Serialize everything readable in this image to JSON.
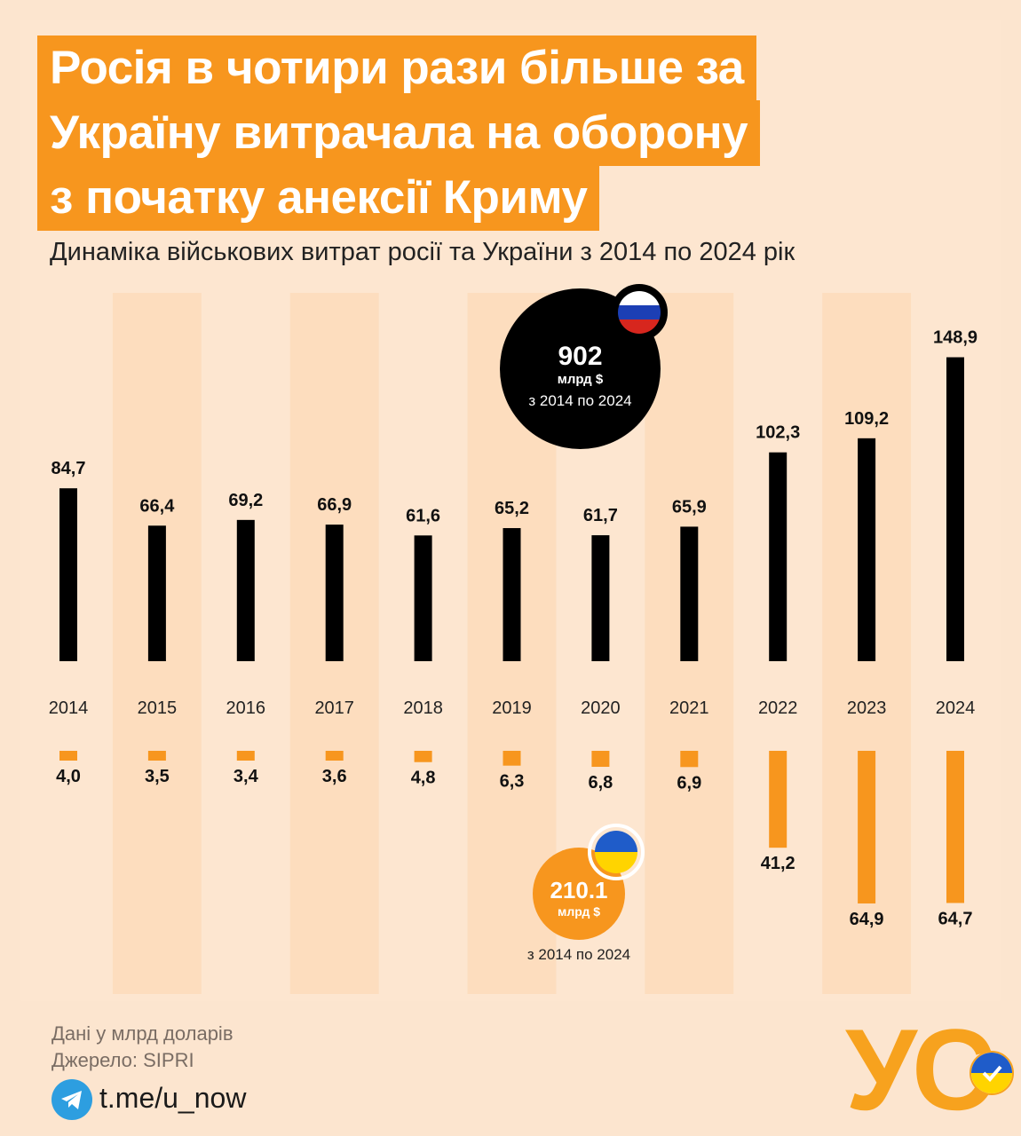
{
  "title_lines": [
    "Росія в чотири рази більше за",
    "Україну витрачала на оборону",
    "з початку анексії Криму"
  ],
  "subtitle": "Динаміка військових витрат росії та України з 2014 по 2024 рік",
  "russia_total": {
    "value": "902",
    "unit": "млрд $",
    "period": "з 2014 по 2024"
  },
  "ukraine_total": {
    "value": "210.1",
    "unit": "млрд $",
    "period": "з 2014 по 2024"
  },
  "footer": {
    "units_note": "Дані у млрд доларів",
    "source": "Джерело: SIPRI",
    "link": "t.me/u_now",
    "logo": "УС"
  },
  "icons": {
    "telegram": "telegram-icon",
    "flag_russia": "russia-flag-icon",
    "flag_ukraine": "ukraine-flag-icon"
  },
  "colors": {
    "russia": "#000000",
    "ukraine": "#f7961e",
    "background": "#fce5cf",
    "title_bg": "#f7961e"
  },
  "chart_data": {
    "type": "bar",
    "categories": [
      "2014",
      "2015",
      "2016",
      "2017",
      "2018",
      "2019",
      "2020",
      "2021",
      "2022",
      "2023",
      "2024"
    ],
    "series": [
      {
        "values": [
          84.7,
          66.4,
          69.2,
          66.9,
          61.6,
          65.2,
          61.7,
          65.9,
          102.3,
          109.2,
          148.9
        ],
        "labels": [
          "84,7",
          "66,4",
          "69,2",
          "66,9",
          "61,6",
          "65,2",
          "61,7",
          "65,9",
          "102,3",
          "109,2",
          "148,9"
        ]
      },
      {
        "values": [
          4.0,
          3.5,
          3.4,
          3.6,
          4.8,
          6.3,
          6.8,
          6.9,
          41.2,
          64.9,
          64.7
        ],
        "labels": [
          "4,0",
          "3,5",
          "3,4",
          "3,6",
          "4,8",
          "6,3",
          "6,8",
          "6,9",
          "41,2",
          "64,9",
          "64,7"
        ]
      }
    ],
    "title": "Росія в чотири рази більше за Україну витрачала на оборону з початку анексії Криму",
    "subtitle": "Динаміка військових витрат росії та України з 2014 по 2024 рік",
    "legend": "none",
    "grid": false
  }
}
